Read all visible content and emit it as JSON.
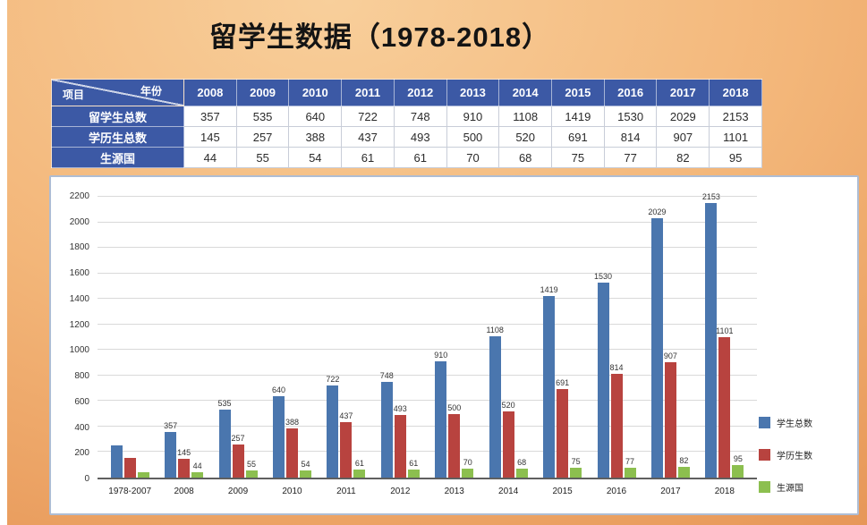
{
  "title": "留学生数据（1978-2018）",
  "table": {
    "corner": {
      "top": "年份",
      "bottom": "项目"
    },
    "years": [
      "2008",
      "2009",
      "2010",
      "2011",
      "2012",
      "2013",
      "2014",
      "2015",
      "2016",
      "2017",
      "2018"
    ],
    "rows": [
      {
        "label": "留学生总数",
        "values": [
          357,
          535,
          640,
          722,
          748,
          910,
          1108,
          1419,
          1530,
          2029,
          2153
        ]
      },
      {
        "label": "学历生总数",
        "values": [
          145,
          257,
          388,
          437,
          493,
          500,
          520,
          691,
          814,
          907,
          1101
        ]
      },
      {
        "label": "生源国",
        "values": [
          44,
          55,
          54,
          61,
          61,
          70,
          68,
          75,
          77,
          82,
          95
        ]
      }
    ]
  },
  "chart_data": {
    "type": "bar",
    "title": "留学生数据（1978-2018）",
    "categories": [
      "1978-2007",
      "2008",
      "2009",
      "2010",
      "2011",
      "2012",
      "2013",
      "2014",
      "2015",
      "2016",
      "2017",
      "2018"
    ],
    "series": [
      {
        "name": "学生总数",
        "color": "#4a76ae",
        "values": [
          250,
          357,
          535,
          640,
          722,
          748,
          910,
          1108,
          1419,
          1530,
          2029,
          2153
        ],
        "labels": [
          null,
          357,
          535,
          640,
          722,
          748,
          910,
          1108,
          1419,
          1530,
          2029,
          2153
        ]
      },
      {
        "name": "学历生数",
        "color": "#b8433f",
        "values": [
          155,
          145,
          257,
          388,
          437,
          493,
          500,
          520,
          691,
          814,
          907,
          1101
        ],
        "labels": [
          null,
          145,
          257,
          388,
          437,
          493,
          500,
          520,
          691,
          814,
          907,
          1101
        ]
      },
      {
        "name": "生源国",
        "color": "#8cbf4f",
        "values": [
          45,
          44,
          55,
          54,
          61,
          61,
          70,
          68,
          75,
          77,
          82,
          95
        ],
        "labels": [
          null,
          44,
          55,
          54,
          61,
          61,
          70,
          68,
          75,
          77,
          82,
          95
        ]
      }
    ],
    "xlabel": "",
    "ylabel": "",
    "ylim": [
      0,
      2200
    ],
    "ytick_step": 200,
    "grid": true,
    "legend_position": "right-bottom"
  }
}
